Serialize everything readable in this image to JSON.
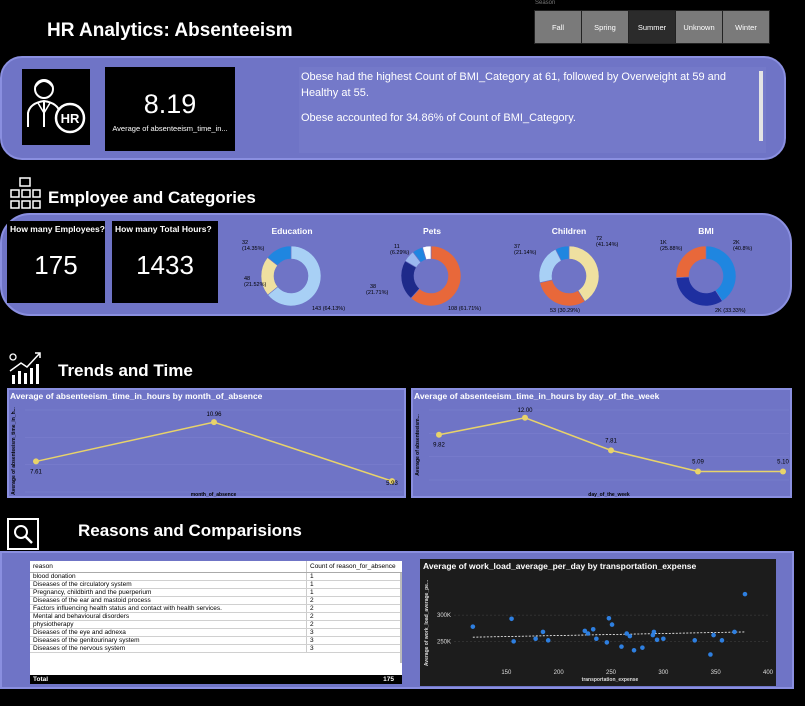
{
  "header": {
    "title": "HR Analytics: Absenteeism"
  },
  "season_filter": {
    "label": "Season",
    "options": [
      {
        "label": "Fall",
        "active": false
      },
      {
        "label": "Spring",
        "active": false
      },
      {
        "label": "Summer",
        "active": true
      },
      {
        "label": "Unknown",
        "active": false
      },
      {
        "label": "Winter",
        "active": false
      }
    ]
  },
  "summary": {
    "hr_icon": "hr-person-icon",
    "kpi_value": "8.19",
    "kpi_label": "Average of absenteeism_time_in...",
    "insight_1": "Obese had the highest Count of BMI_Category at 61, followed by Overweight at 59 and Healthy at 55.",
    "insight_2": "Obese accounted for 34.86% of Count of BMI_Category."
  },
  "sections": {
    "employee": "Employee and Categories",
    "trends": "Trends and Time",
    "reasons": "Reasons and Comparisions"
  },
  "employee_kpis": {
    "employees_label": "How many Employees?",
    "employees_value": "175",
    "hours_label": "How many Total Hours?",
    "hours_value": "1433"
  },
  "chart_data": [
    {
      "type": "pie",
      "title": "Education",
      "values": [
        143,
        48,
        32
      ],
      "labels": [
        "143 (64.13%)",
        "48 (21.52%)",
        "32 (14.35%)"
      ],
      "colors": [
        "#a8d0f5",
        "#efe0a0",
        "#1f86e0"
      ]
    },
    {
      "type": "pie",
      "title": "Pets",
      "values": [
        108,
        38,
        11,
        10,
        8
      ],
      "labels": [
        "108 (61.71%)",
        "38 (21.71%)",
        "11 (6.29%)",
        "",
        ""
      ],
      "colors": [
        "#e8683a",
        "#1e2a8a",
        "#9bb8ef",
        "#1f86e0",
        "#ffffff"
      ]
    },
    {
      "type": "pie",
      "title": "Children",
      "values": [
        72,
        53,
        37,
        13
      ],
      "labels": [
        "72 (41.14%)",
        "53 (30.29%)",
        "37 (21.14%)",
        ""
      ],
      "colors": [
        "#efe0a0",
        "#e8683a",
        "#a8d0f5",
        "#1f86e0"
      ]
    },
    {
      "type": "pie",
      "title": "BMI",
      "values": [
        40.8,
        33.33,
        25.88
      ],
      "labels": [
        "2K (40.8%)",
        "2K (33.33%)",
        "1K (25.88%)"
      ],
      "colors": [
        "#1f86e0",
        "#1e2fa0",
        "#e8683a"
      ]
    },
    {
      "type": "line",
      "title": "Average of absenteeism_time_in_hours by month_of_absence",
      "xlabel": "month_of_absence",
      "ylabel": "Average of absenteeism_time_in_h...",
      "x": [
        "",
        "",
        ""
      ],
      "values": [
        7.61,
        10.96,
        5.93
      ],
      "labels": [
        "7.61",
        "10.96",
        "5.93"
      ],
      "ylim": [
        5,
        12
      ],
      "color": "#e8d36a"
    },
    {
      "type": "line",
      "title": "Average of absenteeism_time_in_hours by day_of_the_week",
      "xlabel": "day_of_the_week",
      "ylabel": "Average of absenteeism...",
      "x": [
        "",
        "",
        "",
        "",
        ""
      ],
      "values": [
        9.82,
        12.0,
        7.81,
        5.09,
        5.1
      ],
      "labels": [
        "9.82",
        "12.00",
        "7.81",
        "5.09",
        "5.10"
      ],
      "ylim": [
        4,
        13
      ],
      "color": "#e8d36a"
    },
    {
      "type": "table",
      "columns": [
        "reason",
        "Count of reason_for_absence"
      ],
      "rows": [
        [
          "blood donation",
          "1"
        ],
        [
          "Diseases of the circulatory system",
          "1"
        ],
        [
          "Pregnancy, childbirth and the puerperium",
          "1"
        ],
        [
          "Diseases of the ear and mastoid process",
          "2"
        ],
        [
          "Factors influencing health status and contact with health services.",
          "2"
        ],
        [
          "Mental and behavioural disorders",
          "2"
        ],
        [
          "physiotherapy",
          "2"
        ],
        [
          "Diseases of the eye and adnexa",
          "3"
        ],
        [
          "Diseases of the genitourinary system",
          "3"
        ],
        [
          "Diseases of the nervous system",
          "3"
        ]
      ],
      "total_label": "Total",
      "total_value": "175"
    },
    {
      "type": "scatter",
      "title": "Average of work_load_average_per_day by transportation_expense",
      "xlabel": "transportation_expense",
      "ylabel": "Average of work_load_average_pe...",
      "xticks": [
        "150",
        "200",
        "250",
        "300",
        "350",
        "400"
      ],
      "yticks": [
        "250K",
        "300K"
      ],
      "xlim": [
        100,
        400
      ],
      "ylim": [
        205000,
        365000
      ],
      "points": [
        [
          118,
          278000
        ],
        [
          155,
          293000
        ],
        [
          157,
          250000
        ],
        [
          178,
          255000
        ],
        [
          185,
          268000
        ],
        [
          190,
          252000
        ],
        [
          225,
          270000
        ],
        [
          228,
          265000
        ],
        [
          233,
          273000
        ],
        [
          236,
          255000
        ],
        [
          246,
          248000
        ],
        [
          248,
          294000
        ],
        [
          251,
          282000
        ],
        [
          260,
          240000
        ],
        [
          265,
          265000
        ],
        [
          268,
          260000
        ],
        [
          272,
          233000
        ],
        [
          280,
          238000
        ],
        [
          290,
          262000
        ],
        [
          291,
          268000
        ],
        [
          294,
          253000
        ],
        [
          300,
          255000
        ],
        [
          330,
          252000
        ],
        [
          345,
          225000
        ],
        [
          348,
          262000
        ],
        [
          356,
          252000
        ],
        [
          368,
          268000
        ],
        [
          378,
          340000
        ]
      ],
      "trend": [
        [
          118,
          258000
        ],
        [
          378,
          268000
        ]
      ],
      "color": "#2e7fe0"
    }
  ]
}
